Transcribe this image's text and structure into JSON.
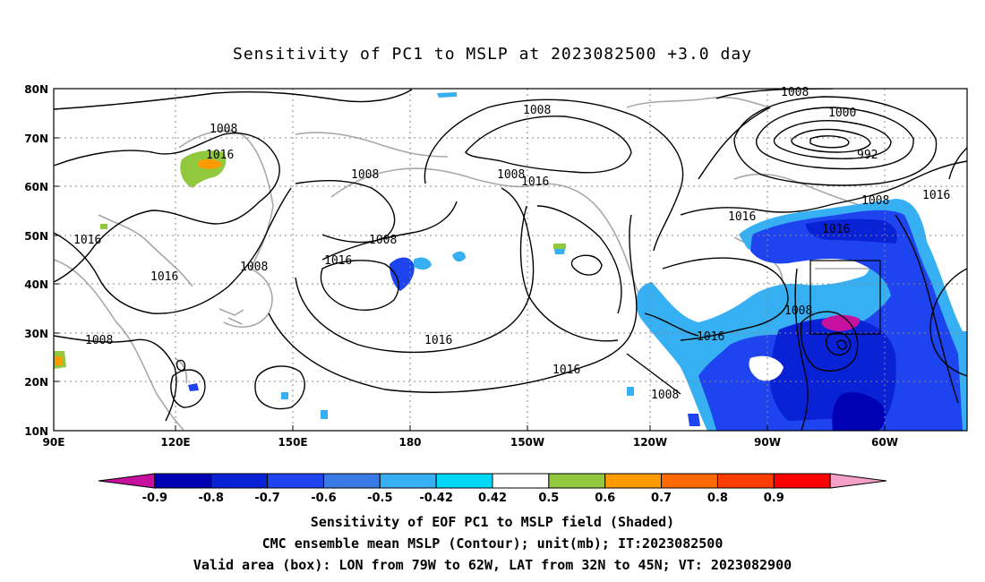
{
  "title": "Sensitivity of PC1 to MSLP at 2023082500 +3.0 day",
  "lat_labels": [
    "80N",
    "70N",
    "60N",
    "50N",
    "40N",
    "30N",
    "20N",
    "10N"
  ],
  "lon_labels": [
    "90E",
    "120E",
    "150E",
    "180",
    "150W",
    "120W",
    "90W",
    "60W"
  ],
  "contour_labels": {
    "l1008_a": "1008",
    "l1016_a": "1016",
    "l1016_b": "1016",
    "l1016_c": "1016",
    "l1008_b": "1008",
    "l1008_c": "1008",
    "l1008_d": "1008",
    "l1008_e": "1008",
    "l1016_d": "1016",
    "l1016_e": "1016",
    "l1016_f": "1016",
    "l1016_g": "1016",
    "l1008_f": "1008",
    "l1000": "1000",
    "l992": "992",
    "l1008_g": "1008",
    "l1016_h": "1016",
    "l1008_h": "1008",
    "l1016_i": "1016",
    "l1008_i": "1008",
    "l1008_j": "1008",
    "l1016_j": "1016",
    "l1016_k": "1016"
  },
  "colorbar": {
    "labels": [
      "-0.9",
      "-0.8",
      "-0.7",
      "-0.6",
      "-0.5",
      "-0.42",
      "0.42",
      "0.5",
      "0.6",
      "0.7",
      "0.8",
      "0.9"
    ],
    "colors": [
      "#c8109f",
      "#0000b4",
      "#0a22d6",
      "#1e44f0",
      "#3a7ae6",
      "#36b0f2",
      "#00d8f8",
      "#ffffff",
      "#92c83e",
      "#ff9a00",
      "#ff6a00",
      "#ff3c00",
      "#ff0000",
      "#f5a0c8"
    ]
  },
  "captions": {
    "line1": "Sensitivity of EOF PC1 to MSLP field (Shaded)",
    "line2": "CMC ensemble mean MSLP (Contour); unit(mb); IT:2023082500",
    "line3": "Valid area (box): LON from 79W to 62W, LAT from 32N to 45N; VT: 2023082900"
  }
}
